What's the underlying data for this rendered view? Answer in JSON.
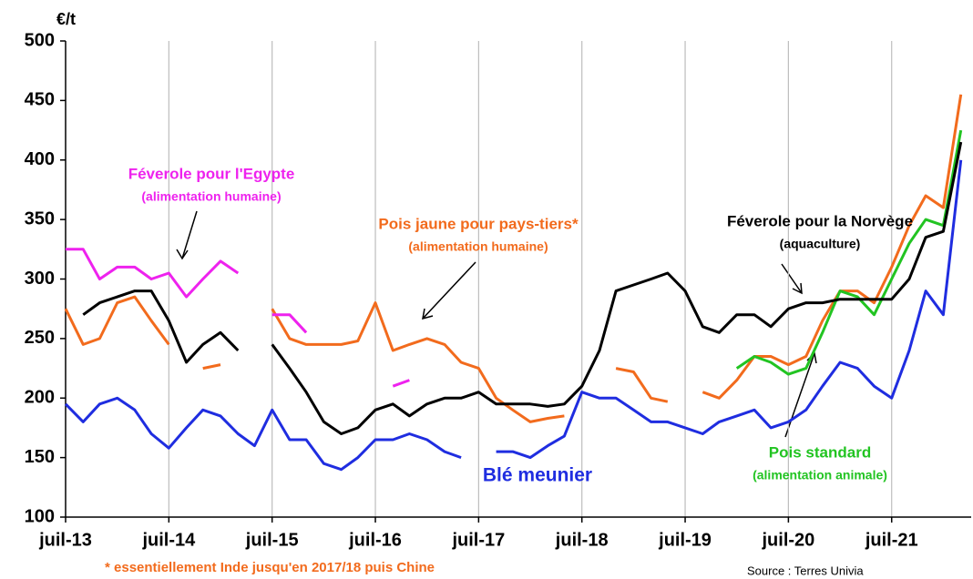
{
  "chart_data": {
    "type": "line",
    "y_unit": "€/t",
    "footnote": "* essentiellement Inde jusqu'en 2017/18 puis Chine",
    "source": "Source : Terres Univia",
    "x": [
      2013.5,
      2013.67,
      2013.83,
      2014,
      2014.17,
      2014.33,
      2014.5,
      2014.67,
      2014.83,
      2015,
      2015.17,
      2015.33,
      2015.5,
      2015.67,
      2015.83,
      2016,
      2016.17,
      2016.33,
      2016.5,
      2016.67,
      2016.83,
      2017,
      2017.17,
      2017.33,
      2017.5,
      2017.67,
      2017.83,
      2018,
      2018.17,
      2018.33,
      2018.5,
      2018.67,
      2018.83,
      2019,
      2019.17,
      2019.33,
      2019.5,
      2019.67,
      2019.83,
      2020,
      2020.17,
      2020.33,
      2020.5,
      2020.67,
      2020.83,
      2021,
      2021.17,
      2021.33,
      2021.5,
      2021.67,
      2021.83,
      2022,
      2022.17
    ],
    "xlim": [
      2013.5,
      2022.27
    ],
    "xticks": [
      {
        "value": 2013.5,
        "label": "juil-13"
      },
      {
        "value": 2014.5,
        "label": "juil-14"
      },
      {
        "value": 2015.5,
        "label": "juil-15"
      },
      {
        "value": 2016.5,
        "label": "juil-16"
      },
      {
        "value": 2017.5,
        "label": "juil-17"
      },
      {
        "value": 2018.5,
        "label": "juil-18"
      },
      {
        "value": 2019.5,
        "label": "juil-19"
      },
      {
        "value": 2020.5,
        "label": "juil-20"
      },
      {
        "value": 2021.5,
        "label": "juil-21"
      }
    ],
    "ylim": [
      100,
      500
    ],
    "yticks": [
      100,
      150,
      200,
      250,
      300,
      350,
      400,
      450,
      500
    ],
    "grid": "x",
    "series": [
      {
        "name": "Blé meunier",
        "color": "#1f2de0",
        "values": [
          195,
          180,
          195,
          200,
          190,
          170,
          158,
          175,
          190,
          185,
          170,
          160,
          190,
          165,
          165,
          145,
          140,
          150,
          165,
          165,
          170,
          165,
          155,
          150,
          null,
          155,
          155,
          150,
          160,
          168,
          205,
          200,
          200,
          190,
          180,
          180,
          175,
          170,
          180,
          185,
          190,
          175,
          180,
          190,
          210,
          230,
          225,
          210,
          200,
          240,
          290,
          270,
          400
        ]
      },
      {
        "name": "Pois jaune pour pays-tiers*",
        "note": "(alimentation humaine)",
        "color": "#f26b1d",
        "values": [
          275,
          245,
          250,
          280,
          285,
          265,
          245,
          null,
          225,
          228,
          null,
          null,
          275,
          250,
          245,
          245,
          245,
          248,
          280,
          240,
          245,
          250,
          245,
          230,
          225,
          200,
          190,
          180,
          183,
          185,
          null,
          null,
          225,
          222,
          200,
          197,
          null,
          205,
          200,
          215,
          235,
          235,
          228,
          235,
          265,
          290,
          290,
          280,
          310,
          345,
          370,
          360,
          455
        ]
      },
      {
        "name": "Pois standard",
        "note": "(alimentation animale)",
        "color": "#22c422",
        "values": [
          null,
          null,
          null,
          null,
          null,
          null,
          null,
          null,
          null,
          null,
          null,
          null,
          null,
          null,
          null,
          null,
          null,
          null,
          null,
          null,
          null,
          null,
          null,
          null,
          null,
          null,
          null,
          null,
          null,
          null,
          null,
          null,
          null,
          null,
          null,
          null,
          null,
          null,
          null,
          225,
          235,
          230,
          220,
          225,
          255,
          290,
          285,
          270,
          300,
          330,
          350,
          345,
          425
        ]
      },
      {
        "name": "Féverole pour l'Egypte",
        "note": "(alimentation humaine)",
        "color": "#ee22ee",
        "values": [
          325,
          325,
          300,
          310,
          310,
          300,
          305,
          285,
          300,
          315,
          305,
          null,
          270,
          270,
          255,
          null,
          null,
          null,
          null,
          210,
          215,
          null,
          null,
          null,
          null,
          null,
          null,
          null,
          null,
          null,
          null,
          null,
          null,
          null,
          null,
          null,
          null,
          null,
          null,
          null,
          null,
          null,
          null,
          null,
          null,
          null,
          null,
          null,
          null,
          null,
          null,
          null,
          null
        ]
      },
      {
        "name": "Féverole pour la Norvège",
        "note": "(aquaculture)",
        "color": "#000000",
        "values": [
          null,
          270,
          280,
          285,
          290,
          290,
          265,
          230,
          245,
          255,
          240,
          null,
          245,
          225,
          205,
          180,
          170,
          175,
          190,
          195,
          185,
          195,
          200,
          200,
          205,
          195,
          195,
          195,
          193,
          195,
          210,
          240,
          290,
          295,
          300,
          305,
          290,
          260,
          255,
          270,
          270,
          260,
          275,
          280,
          280,
          283,
          283,
          283,
          283,
          300,
          335,
          340,
          415
        ]
      }
    ]
  }
}
